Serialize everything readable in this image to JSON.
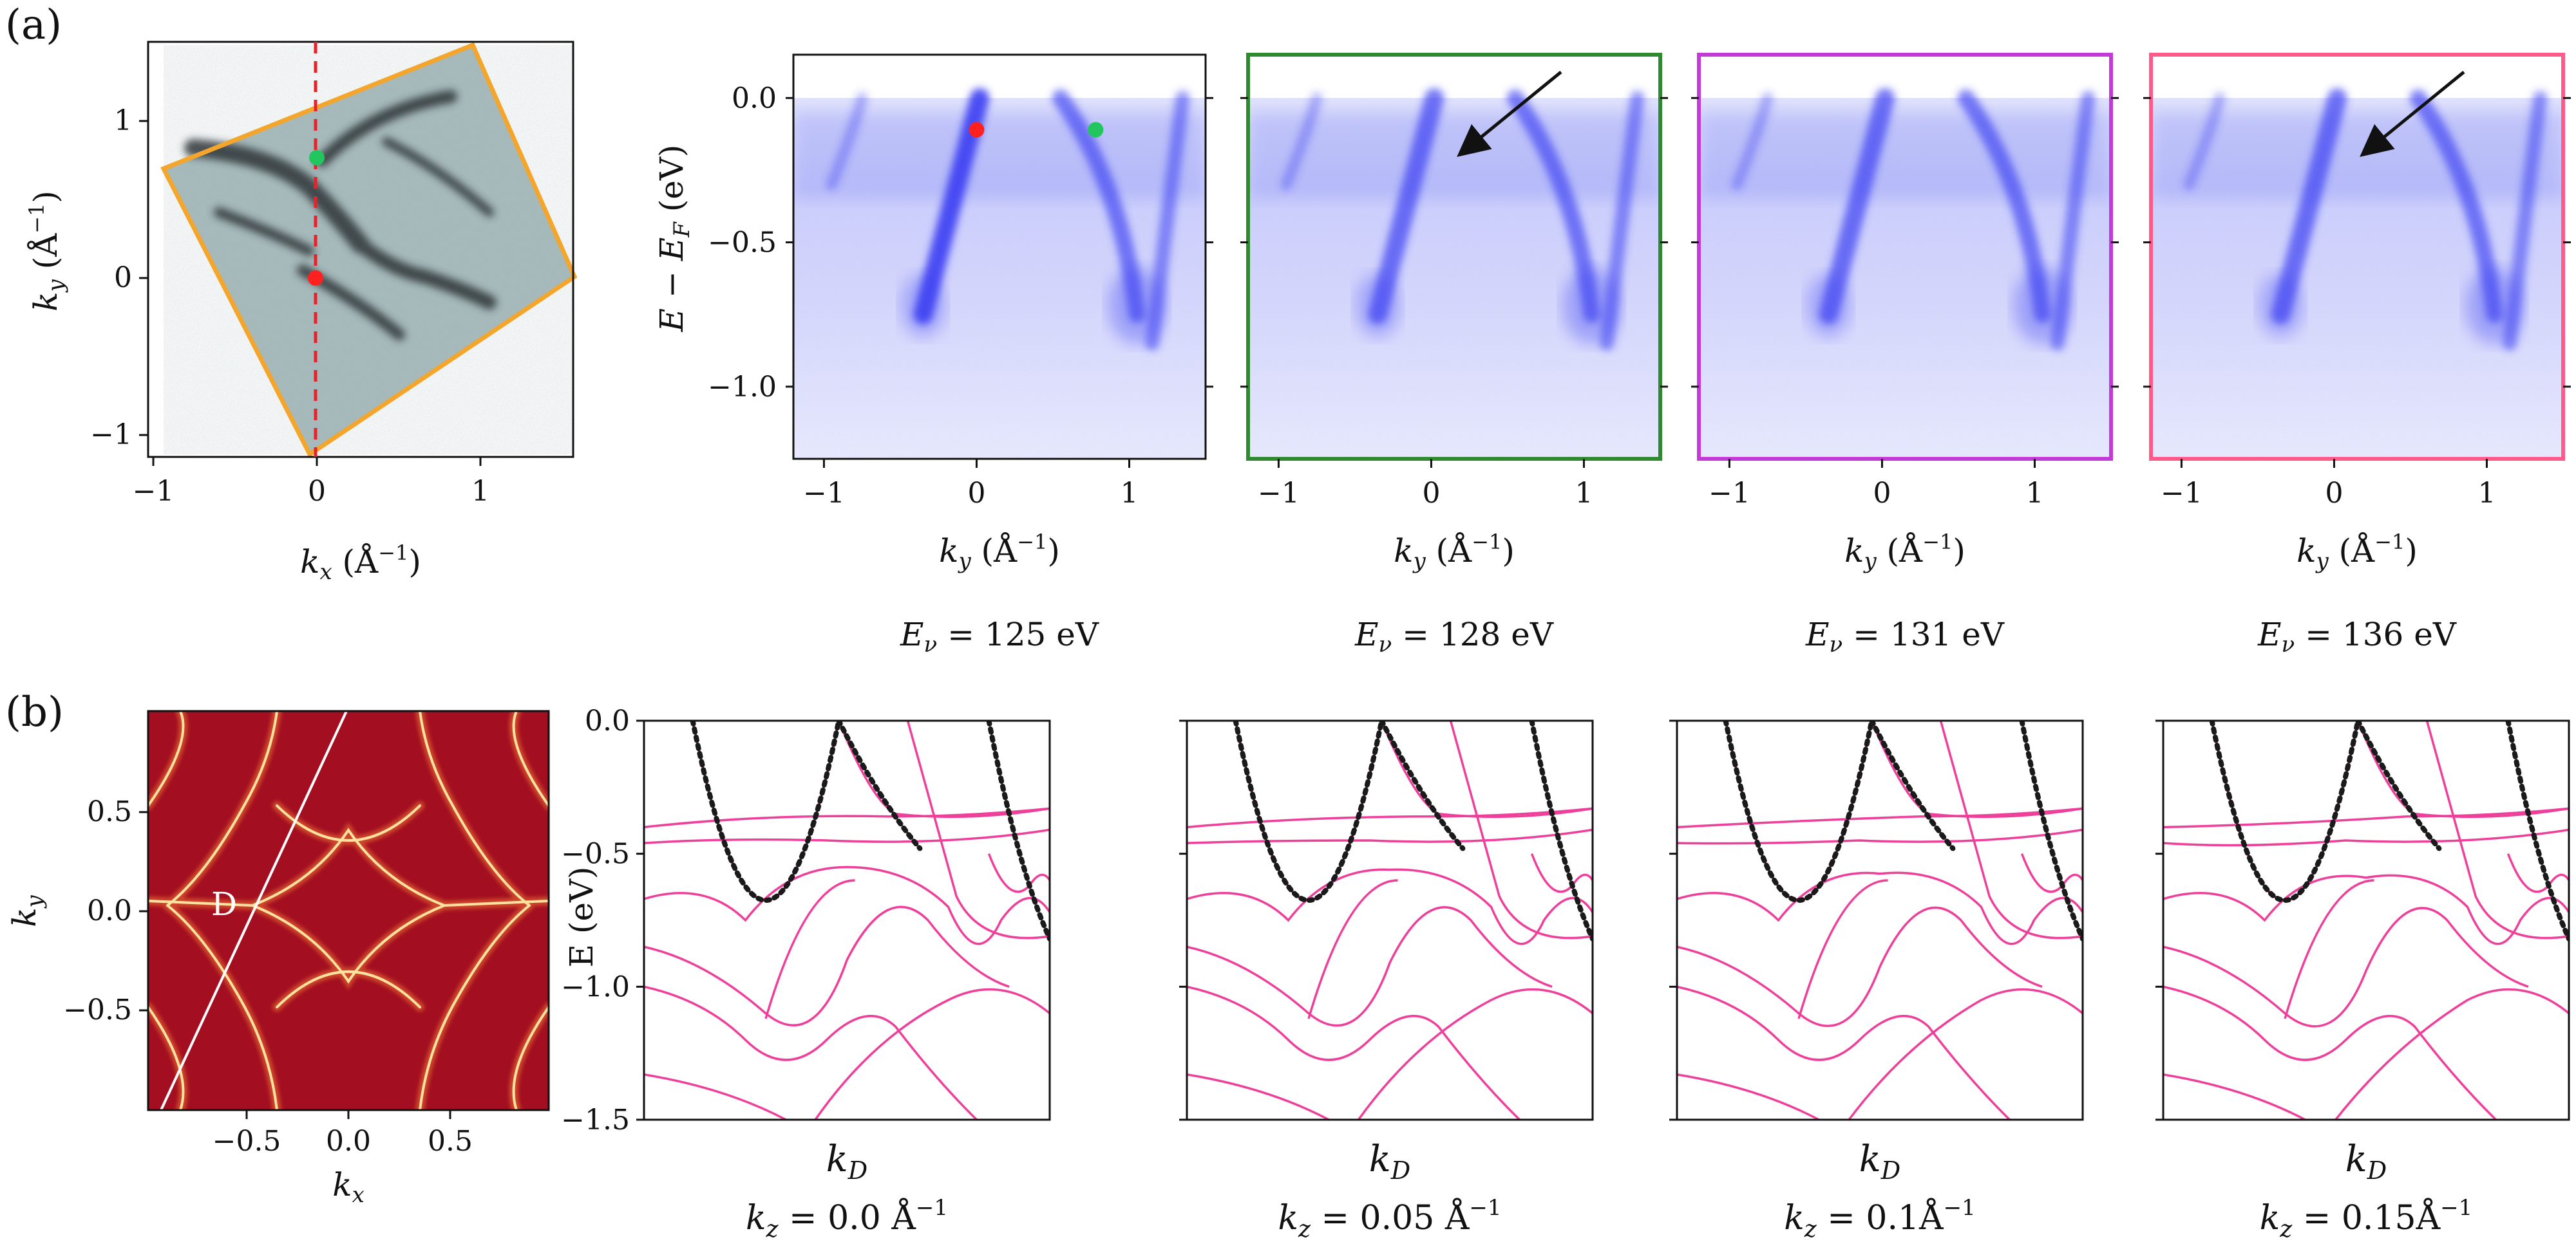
{
  "figure": {
    "panel_labels": {
      "a": "(a)",
      "b": "(b)"
    },
    "colors": {
      "frame_orange": "#f4a52c",
      "arpes_blue": "#3a3ff2",
      "frame_green": "#2f8a2f",
      "frame_purple": "#c43ad8",
      "frame_pink": "#ff5a8a",
      "band_pink": "#ee3f9a",
      "fit_dotted": "#1a1a1a",
      "marker_red": "#ff2020",
      "marker_green": "#22c55e",
      "fs_background": "#a30f20",
      "fs_line": "#ffe2a0"
    }
  },
  "chart_data": [
    {
      "type": "heatmap",
      "panel": "a-fermi-surface",
      "xlabel_main": "k",
      "xlabel_sub": "x",
      "xlabel_unit": " (Å",
      "xlabel_exp": "−1",
      "xlabel_close": ")",
      "ylabel_main": "k",
      "ylabel_sub": "y",
      "ylabel_unit": " (Å",
      "ylabel_exp": "−1",
      "ylabel_close": ")",
      "xticks": [
        "−1",
        "0",
        "1"
      ],
      "yticks": [
        "1",
        "0",
        "−1"
      ],
      "xlim": [
        -1.0,
        1.55
      ],
      "ylim": [
        -1.15,
        1.5
      ],
      "cut_line_kx": -0.02,
      "markers": [
        {
          "kx": -0.02,
          "ky": 0.0,
          "color": "red"
        },
        {
          "kx": 0.0,
          "ky": 0.76,
          "color": "green"
        }
      ]
    },
    {
      "type": "heatmap",
      "panel": "a-arpes",
      "ylabel": "E − E",
      "ylabel_sub": "F",
      "ylabel_unit": " (eV)",
      "yticks": [
        "0.0",
        "−0.5",
        "−1.0"
      ],
      "ylim": [
        -1.25,
        0.15
      ],
      "xlim": [
        -1.2,
        1.5
      ],
      "xticks": [
        "−1",
        "0",
        "1"
      ],
      "xlabel_main": "k",
      "xlabel_sub": "y",
      "xlabel_unit": " (Å",
      "xlabel_exp": "−1",
      "xlabel_close": ")",
      "panels": [
        {
          "photon_energy_label": "= 125 eV",
          "photon_symbol": "E",
          "photon_sub": "ν",
          "dots": [
            {
              "ky": 0.0,
              "E": -0.11,
              "color": "red"
            },
            {
              "ky": 0.78,
              "E": -0.11,
              "color": "green"
            }
          ],
          "arrow": false
        },
        {
          "photon_energy_label": "= 128 eV",
          "photon_symbol": "E",
          "photon_sub": "ν",
          "dots": [],
          "arrow": true
        },
        {
          "photon_energy_label": "= 131 eV",
          "photon_symbol": "E",
          "photon_sub": "ν",
          "dots": [],
          "arrow": false
        },
        {
          "photon_energy_label": "= 136 eV",
          "photon_symbol": "E",
          "photon_sub": "ν",
          "dots": [],
          "arrow": true
        }
      ]
    },
    {
      "type": "heatmap",
      "panel": "b-fermi-surface",
      "xlabel_main": "k",
      "xlabel_sub": "x",
      "ylabel_main": "k",
      "ylabel_sub": "y",
      "xticks": [
        "−0.5",
        "0.0",
        "0.5"
      ],
      "yticks": [
        "0.5",
        "0.0",
        "−0.5"
      ],
      "xlim": [
        -0.98,
        0.98
      ],
      "ylim": [
        -0.98,
        0.98
      ],
      "cut_label": "D"
    },
    {
      "type": "line",
      "panel": "b-bands",
      "ylabel": "E (eV)",
      "yticks": [
        "0.0",
        "−0.5",
        "−1.0",
        "−1.5"
      ],
      "ylim": [
        -1.5,
        0.0
      ],
      "xlabel_main": "k",
      "xlabel_sub": "D",
      "panels": [
        {
          "kz_label": "= 0.0 Å",
          "kz_exp": "−1",
          "kz_symbol": "k",
          "kz_sub": "z"
        },
        {
          "kz_label": "= 0.05 Å",
          "kz_exp": "−1",
          "kz_symbol": "k",
          "kz_sub": "z"
        },
        {
          "kz_label": "= 0.1Å",
          "kz_exp": "−1",
          "kz_symbol": "k",
          "kz_sub": "z"
        },
        {
          "kz_label": "= 0.15Å",
          "kz_exp": "−1",
          "kz_symbol": "k",
          "kz_sub": "z"
        }
      ]
    }
  ]
}
